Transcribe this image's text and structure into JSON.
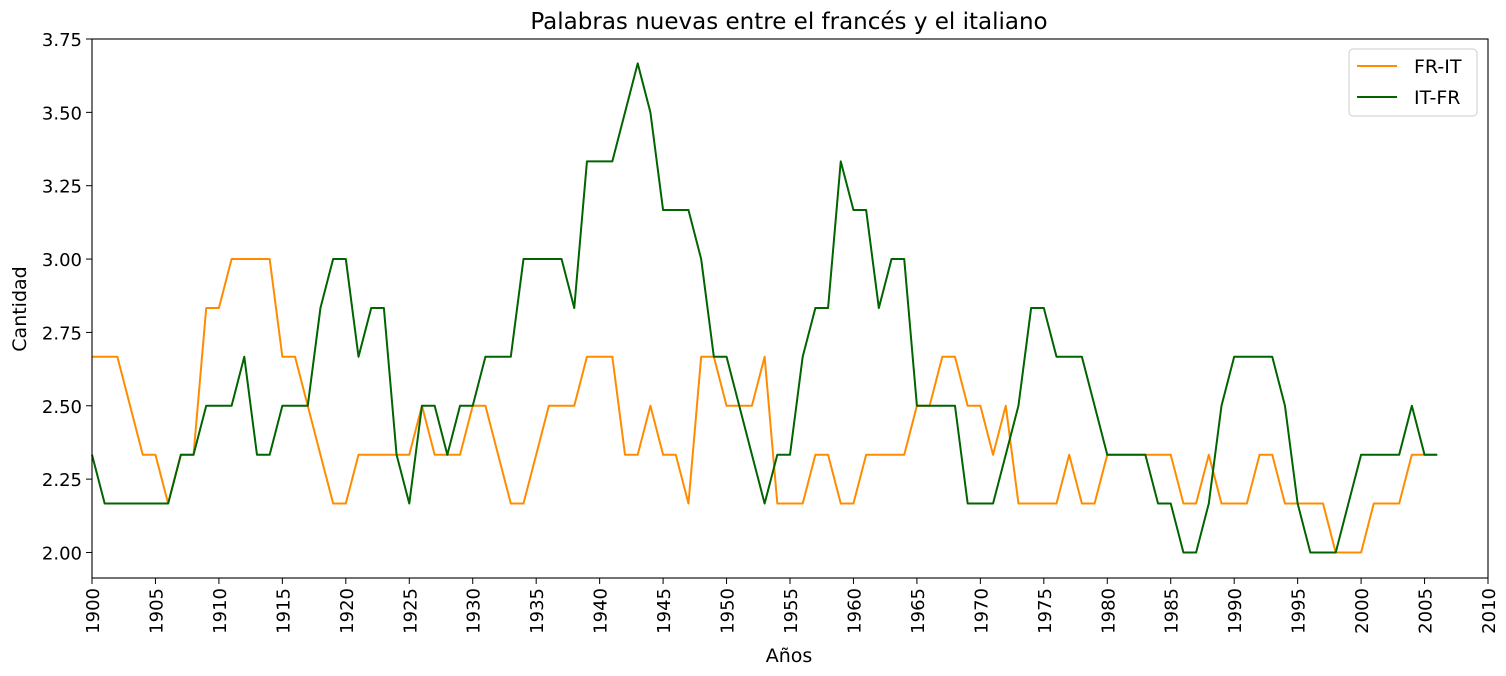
{
  "chart_data": {
    "type": "line",
    "title": "Palabras nuevas entre el francés y el italiano",
    "xlabel": "Años",
    "ylabel": "Cantidad",
    "xlim": [
      1900,
      2010
    ],
    "ylim": [
      1.913,
      3.75
    ],
    "x_ticks": [
      "1900",
      "1905",
      "1910",
      "1915",
      "1920",
      "1925",
      "1930",
      "1935",
      "1940",
      "1945",
      "1950",
      "1955",
      "1960",
      "1965",
      "1970",
      "1975",
      "1980",
      "1985",
      "1990",
      "1995",
      "2000",
      "2005",
      "2010"
    ],
    "y_ticks": [
      "2.00",
      "2.25",
      "2.50",
      "2.75",
      "3.00",
      "3.25",
      "3.50",
      "3.75"
    ],
    "grid": false,
    "legend_position": "top-right",
    "x_start": 1900,
    "series": [
      {
        "name": "FR-IT",
        "color": "#ff8c00",
        "values": [
          2.667,
          2.667,
          2.667,
          2.5,
          2.333,
          2.333,
          2.167,
          2.333,
          2.333,
          2.833,
          2.833,
          3.0,
          3.0,
          3.0,
          3.0,
          2.667,
          2.667,
          2.5,
          2.333,
          2.167,
          2.167,
          2.333,
          2.333,
          2.333,
          2.333,
          2.333,
          2.5,
          2.333,
          2.333,
          2.333,
          2.5,
          2.5,
          2.333,
          2.167,
          2.167,
          2.333,
          2.5,
          2.5,
          2.5,
          2.667,
          2.667,
          2.667,
          2.333,
          2.333,
          2.5,
          2.333,
          2.333,
          2.167,
          2.667,
          2.667,
          2.5,
          2.5,
          2.5,
          2.667,
          2.167,
          2.167,
          2.167,
          2.333,
          2.333,
          2.167,
          2.167,
          2.333,
          2.333,
          2.333,
          2.333,
          2.5,
          2.5,
          2.667,
          2.667,
          2.5,
          2.5,
          2.333,
          2.5,
          2.167,
          2.167,
          2.167,
          2.167,
          2.333,
          2.167,
          2.167,
          2.333,
          2.333,
          2.333,
          2.333,
          2.333,
          2.333,
          2.167,
          2.167,
          2.333,
          2.167,
          2.167,
          2.167,
          2.333,
          2.333,
          2.167,
          2.167,
          2.167,
          2.167,
          2.0,
          2.0,
          2.0,
          2.167,
          2.167,
          2.167,
          2.333,
          2.333,
          2.333
        ]
      },
      {
        "name": "IT-FR",
        "color": "#006400",
        "values": [
          2.333,
          2.167,
          2.167,
          2.167,
          2.167,
          2.167,
          2.167,
          2.333,
          2.333,
          2.5,
          2.5,
          2.5,
          2.667,
          2.333,
          2.333,
          2.5,
          2.5,
          2.5,
          2.833,
          3.0,
          3.0,
          2.667,
          2.833,
          2.833,
          2.333,
          2.167,
          2.5,
          2.5,
          2.333,
          2.5,
          2.5,
          2.667,
          2.667,
          2.667,
          3.0,
          3.0,
          3.0,
          3.0,
          2.833,
          3.333,
          3.333,
          3.333,
          3.5,
          3.667,
          3.5,
          3.167,
          3.167,
          3.167,
          3.0,
          2.667,
          2.667,
          2.5,
          2.333,
          2.167,
          2.333,
          2.333,
          2.667,
          2.833,
          2.833,
          3.333,
          3.167,
          3.167,
          2.833,
          3.0,
          3.0,
          2.5,
          2.5,
          2.5,
          2.5,
          2.167,
          2.167,
          2.167,
          2.333,
          2.5,
          2.833,
          2.833,
          2.667,
          2.667,
          2.667,
          2.5,
          2.333,
          2.333,
          2.333,
          2.333,
          2.167,
          2.167,
          2.0,
          2.0,
          2.167,
          2.5,
          2.667,
          2.667,
          2.667,
          2.667,
          2.5,
          2.167,
          2.0,
          2.0,
          2.0,
          2.167,
          2.333,
          2.333,
          2.333,
          2.333,
          2.5,
          2.333,
          2.333
        ]
      }
    ]
  }
}
